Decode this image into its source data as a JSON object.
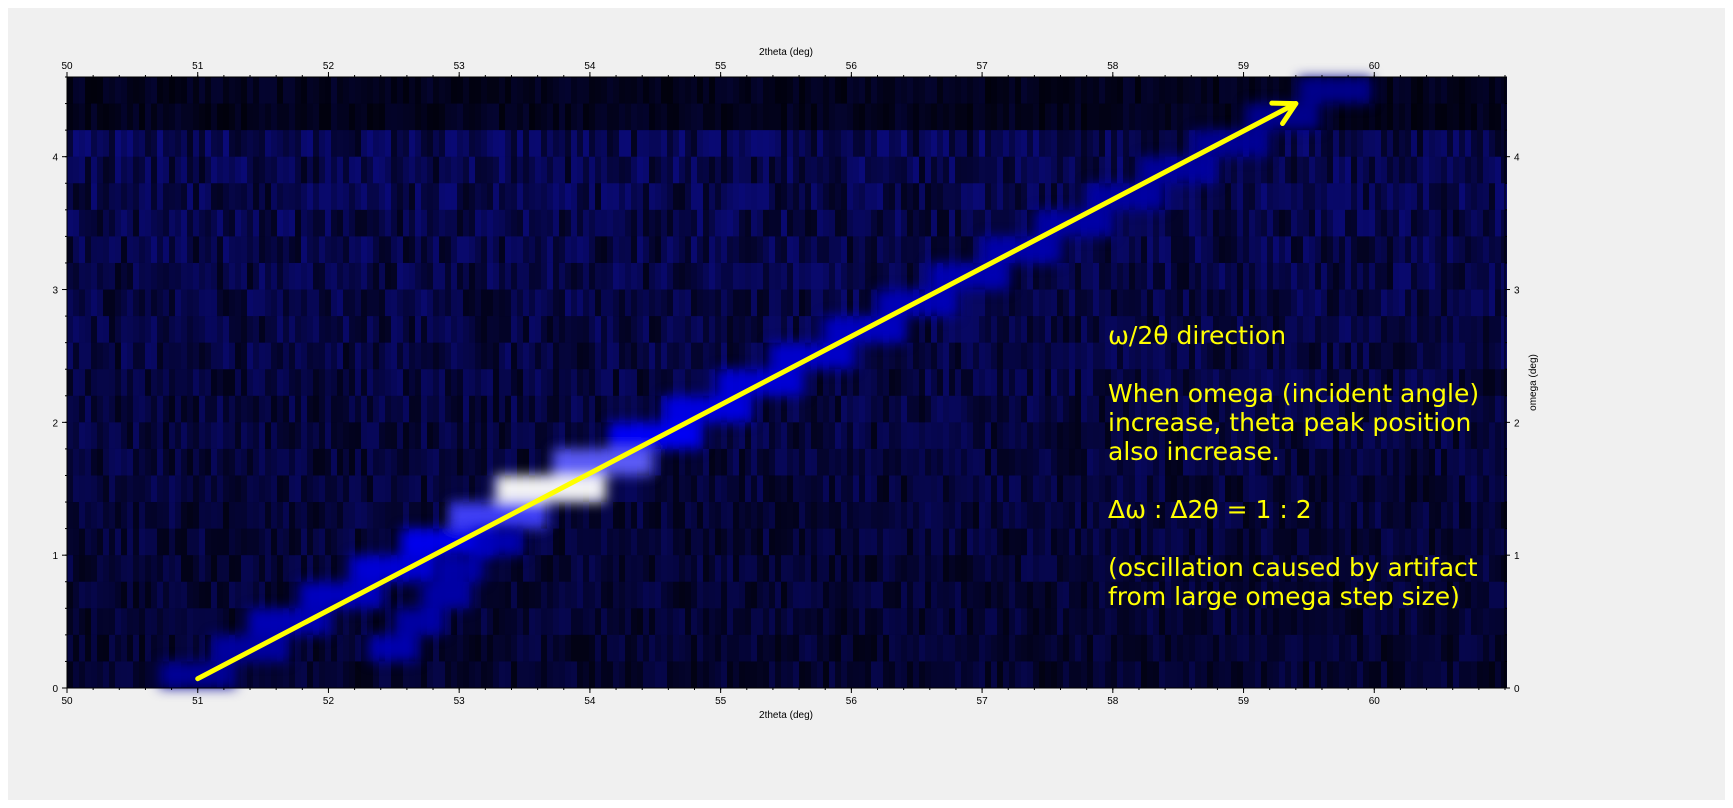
{
  "chart_data": {
    "type": "heatmap",
    "title": "",
    "xlabel": "2theta (deg)",
    "x2label": "2theta (deg)",
    "ylabel": "",
    "y2label": "omega (deg)",
    "xlim": [
      50,
      61
    ],
    "ylim": [
      0,
      4.6
    ],
    "xticks": [
      "50",
      "51",
      "52",
      "53",
      "54",
      "55",
      "56",
      "57",
      "58",
      "59",
      "60"
    ],
    "yticks": [
      "0",
      "1",
      "2",
      "3",
      "4"
    ],
    "colormap": [
      "#000010",
      "#0000ff",
      "#ffffff"
    ],
    "ridge": [
      {
        "omega": 0.1,
        "two_theta": 51.0,
        "intensity": 0.15
      },
      {
        "omega": 0.3,
        "two_theta": 51.4,
        "intensity": 0.2
      },
      {
        "omega": 0.5,
        "two_theta": 51.7,
        "intensity": 0.3
      },
      {
        "omega": 0.7,
        "two_theta": 52.1,
        "intensity": 0.35
      },
      {
        "omega": 0.9,
        "two_theta": 52.5,
        "intensity": 0.45
      },
      {
        "omega": 1.1,
        "two_theta": 52.9,
        "intensity": 0.55
      },
      {
        "omega": 1.3,
        "two_theta": 53.3,
        "intensity": 0.7
      },
      {
        "omega": 1.5,
        "two_theta": 53.7,
        "intensity": 1.0
      },
      {
        "omega": 1.7,
        "two_theta": 54.1,
        "intensity": 0.75
      },
      {
        "omega": 1.9,
        "two_theta": 54.5,
        "intensity": 0.6
      },
      {
        "omega": 2.1,
        "two_theta": 54.9,
        "intensity": 0.5
      },
      {
        "omega": 2.3,
        "two_theta": 55.3,
        "intensity": 0.45
      },
      {
        "omega": 2.5,
        "two_theta": 55.7,
        "intensity": 0.4
      },
      {
        "omega": 2.7,
        "two_theta": 56.1,
        "intensity": 0.35
      },
      {
        "omega": 2.9,
        "two_theta": 56.5,
        "intensity": 0.3
      },
      {
        "omega": 3.1,
        "two_theta": 56.9,
        "intensity": 0.28
      },
      {
        "omega": 3.3,
        "two_theta": 57.3,
        "intensity": 0.25
      },
      {
        "omega": 3.5,
        "two_theta": 57.7,
        "intensity": 0.22
      },
      {
        "omega": 3.7,
        "two_theta": 58.1,
        "intensity": 0.2
      },
      {
        "omega": 3.9,
        "two_theta": 58.5,
        "intensity": 0.18
      },
      {
        "omega": 4.1,
        "two_theta": 58.9,
        "intensity": 0.15
      },
      {
        "omega": 4.3,
        "two_theta": 59.3,
        "intensity": 0.12
      },
      {
        "omega": 4.5,
        "two_theta": 59.7,
        "intensity": 0.1
      }
    ],
    "artifact_spots": [
      {
        "omega": 0.3,
        "two_theta": 52.5,
        "intensity": 0.3
      },
      {
        "omega": 0.5,
        "two_theta": 52.7,
        "intensity": 0.25
      },
      {
        "omega": 0.7,
        "two_theta": 52.9,
        "intensity": 0.25
      },
      {
        "omega": 0.9,
        "two_theta": 53.0,
        "intensity": 0.25
      },
      {
        "omega": 1.1,
        "two_theta": 53.3,
        "intensity": 0.3
      }
    ],
    "arrow": {
      "from": {
        "two_theta": 51.0,
        "omega": 0.07
      },
      "to": {
        "two_theta": 59.4,
        "omega": 4.4
      },
      "color": "#ffff00"
    },
    "annotation": {
      "lines": [
        "ω/2θ direction",
        "",
        "When omega (incident angle)",
        "increase, theta peak position",
        "also increase.",
        "",
        "Δω : Δ2θ = 1 : 2",
        "",
        "(oscillation caused by artifact",
        "from large omega step size)"
      ],
      "color": "#ffff00"
    }
  }
}
